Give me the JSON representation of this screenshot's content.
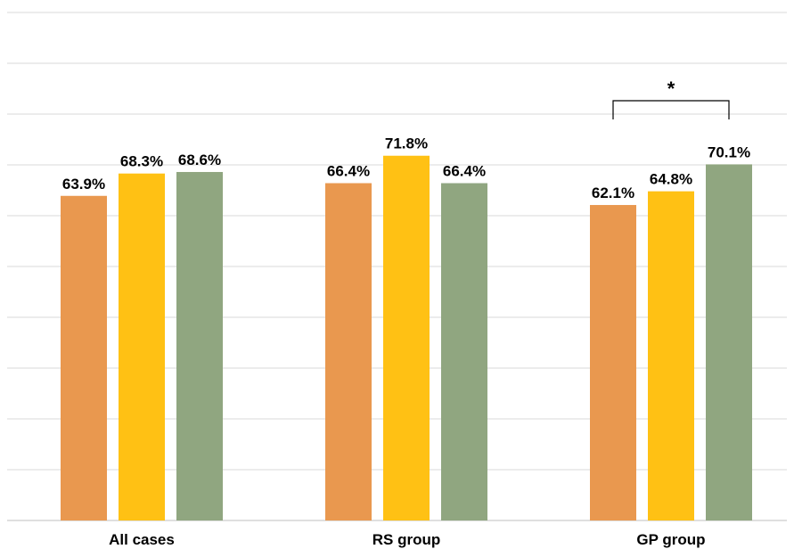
{
  "chart_data": {
    "type": "bar",
    "categories": [
      "All cases",
      "RS group",
      "GP group"
    ],
    "series": [
      {
        "values": [
          63.9,
          66.4,
          62.1
        ],
        "labels": [
          "63.9%",
          "66.4%",
          "62.1%"
        ]
      },
      {
        "values": [
          68.3,
          71.8,
          64.8
        ],
        "labels": [
          "68.3%",
          "71.8%",
          "64.8%"
        ]
      },
      {
        "values": [
          68.6,
          66.4,
          70.1
        ],
        "labels": [
          "68.6%",
          "66.4%",
          "70.1%"
        ]
      }
    ],
    "ylim": [
      0,
      105
    ],
    "grid": true,
    "gridline_step": 10,
    "legend": "none",
    "colors": [
      "#E9984F",
      "#FFC114",
      "#90A680"
    ],
    "significance": {
      "category": "GP group",
      "between_series": [
        0,
        2
      ],
      "label": "*"
    }
  }
}
